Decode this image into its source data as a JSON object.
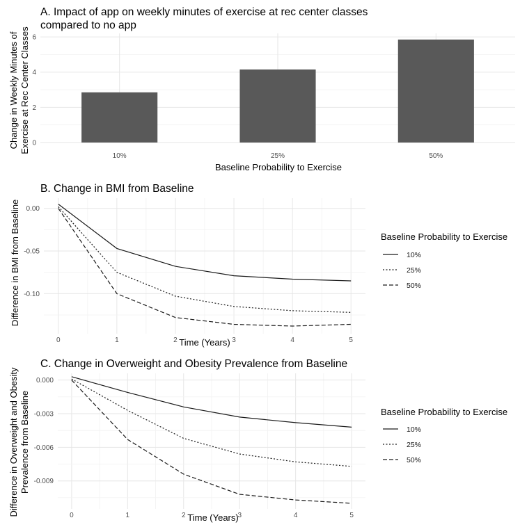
{
  "chart_data": [
    {
      "type": "bar",
      "title_line1": "A.  Impact of app on weekly minutes of exercise at rec center classes",
      "title_line2": "compared to no app",
      "xlabel": "Baseline Probability to Exercise",
      "ylabel_line1": "Change in Weekly Minutes of",
      "ylabel_line2": "Exercise at Rec Center Classes",
      "categories": [
        "10%",
        "25%",
        "50%"
      ],
      "values": [
        2.85,
        4.15,
        5.85
      ],
      "ylim": [
        0,
        6.2
      ],
      "yticks": [
        "0",
        "2",
        "4",
        "6"
      ],
      "ytick_values": [
        0,
        2,
        4,
        6
      ],
      "bar_color": "#595959",
      "grid": true
    },
    {
      "type": "line",
      "title": "B.  Change in BMI from Baseline",
      "xlabel": "Time (Years)",
      "ylabel": "Difference in BMI from Baseline",
      "x": [
        0,
        1,
        2,
        3,
        4,
        5
      ],
      "xticks": [
        "0",
        "1",
        "2",
        "3",
        "4",
        "5"
      ],
      "yticks": [
        "0.00",
        "-0.05",
        "-0.10"
      ],
      "ytick_values": [
        0,
        -0.05,
        -0.1
      ],
      "ylim": [
        -0.147,
        0.012
      ],
      "series": [
        {
          "name": "10%",
          "dash": "solid",
          "values": [
            0.005,
            -0.047,
            -0.068,
            -0.079,
            -0.083,
            -0.085
          ]
        },
        {
          "name": "25%",
          "dash": "dotted",
          "values": [
            0.002,
            -0.075,
            -0.103,
            -0.115,
            -0.12,
            -0.122
          ]
        },
        {
          "name": "50%",
          "dash": "dashed",
          "values": [
            0.0,
            -0.1,
            -0.128,
            -0.136,
            -0.138,
            -0.136
          ]
        }
      ],
      "legend_title": "Baseline Probability to Exercise",
      "legend_position": "right",
      "grid": true
    },
    {
      "type": "line",
      "title": "C.  Change in Overweight and Obesity Prevalence from Baseline",
      "xlabel": "Time (Years)",
      "ylabel_line1": "Difference in Overweight and Obesity",
      "ylabel_line2": "Prevalence from Baseline",
      "x": [
        0,
        1,
        2,
        3,
        4,
        5
      ],
      "xticks": [
        "0",
        "1",
        "2",
        "3",
        "4",
        "5"
      ],
      "yticks": [
        "0.000",
        "-0.003",
        "-0.006",
        "-0.009"
      ],
      "ytick_values": [
        0,
        -0.003,
        -0.006,
        -0.009
      ],
      "ylim": [
        -0.0115,
        0.0006
      ],
      "series": [
        {
          "name": "10%",
          "dash": "solid",
          "values": [
            0.0003,
            -0.0011,
            -0.0024,
            -0.0033,
            -0.0038,
            -0.0042
          ]
        },
        {
          "name": "25%",
          "dash": "dotted",
          "values": [
            0.0001,
            -0.0027,
            -0.0052,
            -0.0066,
            -0.0073,
            -0.0077
          ]
        },
        {
          "name": "50%",
          "dash": "dashed",
          "values": [
            0.0,
            -0.0053,
            -0.0084,
            -0.0102,
            -0.0107,
            -0.011
          ]
        }
      ],
      "legend_title": "Baseline Probability to Exercise",
      "legend_position": "right",
      "grid": true
    }
  ]
}
